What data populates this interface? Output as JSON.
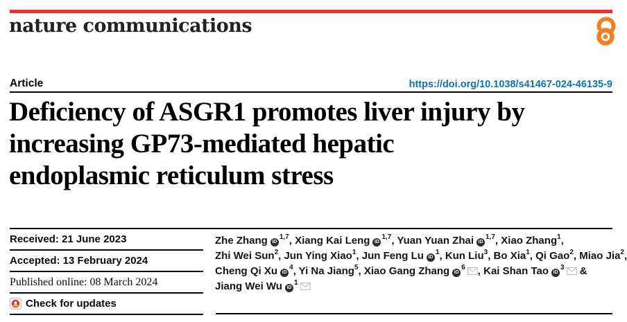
{
  "masthead": {
    "journal": "nature communications",
    "accent_red": "#e63428",
    "open_access_color": "#ee8123"
  },
  "article_bar": {
    "type_label": "Article",
    "doi": "https://doi.org/10.1038/s41467-024-46135-9",
    "doi_color": "#0d73b2"
  },
  "title": {
    "lines": [
      "Deficiency of ASGR1 promotes liver injury by",
      "increasing GP73-mediated hepatic",
      "endoplasmic reticulum stress"
    ]
  },
  "history": {
    "received": "Received: 21 June 2023",
    "accepted": "Accepted: 13 February 2024",
    "published": "Published online: 08 March 2024",
    "check_updates": "Check for updates"
  },
  "icons": {
    "orcid_glyph": "iD"
  },
  "authors": {
    "lines": [
      [
        {
          "name": "Zhe Zhang",
          "orcid": true,
          "sup": "1,7",
          "mail": false,
          "sep": ", "
        },
        {
          "name": "Xiang Kai Leng",
          "orcid": true,
          "sup": "1,7",
          "mail": false,
          "sep": ", "
        },
        {
          "name": "Yuan Yuan Zhai",
          "orcid": true,
          "sup": "1,7",
          "mail": false,
          "sep": ", "
        },
        {
          "name": "Xiao Zhang",
          "orcid": false,
          "sup": "1",
          "mail": false,
          "sep": ","
        }
      ],
      [
        {
          "name": "Zhi Wei Sun",
          "orcid": false,
          "sup": "2",
          "mail": false,
          "sep": ", "
        },
        {
          "name": "Jun Ying Xiao",
          "orcid": false,
          "sup": "1",
          "mail": false,
          "sep": ", "
        },
        {
          "name": "Jun Feng Lu",
          "orcid": true,
          "sup": "1",
          "mail": false,
          "sep": ", "
        },
        {
          "name": "Kun Liu",
          "orcid": false,
          "sup": "3",
          "mail": false,
          "sep": ", "
        },
        {
          "name": "Bo Xia",
          "orcid": false,
          "sup": "1",
          "mail": false,
          "sep": ", "
        },
        {
          "name": "Qi Gao",
          "orcid": false,
          "sup": "2",
          "mail": false,
          "sep": ", "
        },
        {
          "name": "Miao Jia",
          "orcid": false,
          "sup": "2",
          "mail": false,
          "sep": ","
        }
      ],
      [
        {
          "name": "Cheng Qi Xu",
          "orcid": true,
          "sup": "4",
          "mail": false,
          "sep": ", "
        },
        {
          "name": "Yi Na Jiang",
          "orcid": false,
          "sup": "5",
          "mail": false,
          "sep": ", "
        },
        {
          "name": "Xiao Gang Zhang",
          "orcid": true,
          "sup": "6",
          "mail": true,
          "sep": ", "
        },
        {
          "name": "Kai Shan Tao",
          "orcid": true,
          "sup": "3",
          "mail": true,
          "sep": " &"
        }
      ],
      [
        {
          "name": "Jiang Wei Wu",
          "orcid": true,
          "sup": "1",
          "mail": true,
          "sep": ""
        }
      ]
    ]
  }
}
